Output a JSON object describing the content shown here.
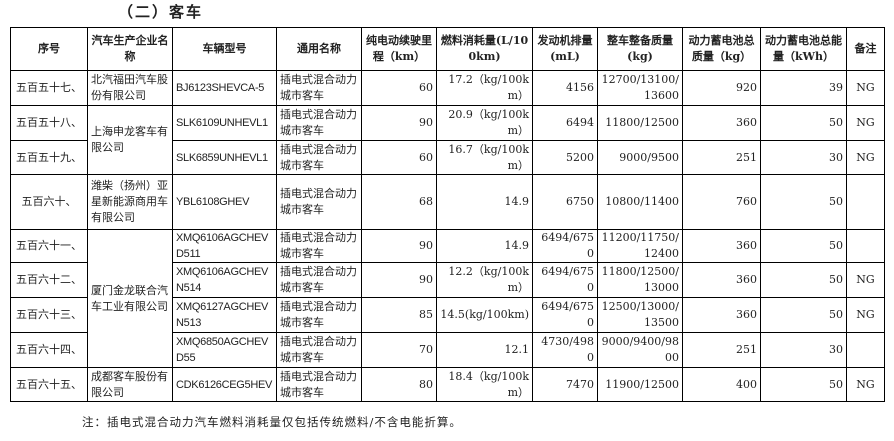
{
  "section_title": "（二）客车",
  "headers": [
    "序号",
    "汽车生产企业名称",
    "车辆型号",
    "通用名称",
    "纯电动续驶里程（km）",
    "燃料消耗量(L/100km)",
    "发动机排量(mL)",
    "整车整备质量(kg)",
    "动力蓄电池总质量（kg）",
    "动力蓄电池总能量（kWh）",
    "备注"
  ],
  "companies": [
    "北汽福田汽车股份有限公司",
    "上海申龙客车有限公司",
    "潍柴（扬州）亚星新能源商用车有限公司",
    "厦门金龙联合汽车工业有限公司",
    "成都客车股份有限公司"
  ],
  "rows": [
    {
      "no": "五百五十七、",
      "model": "BJ6123SHEVCA-5",
      "name": "插电式混合动力城市客车",
      "range": "60",
      "fuel": "17.2（kg/100km）",
      "engine": "4156",
      "mass": "12700/13100/13600",
      "batt_mass": "920",
      "batt_energy": "39",
      "note": "NG"
    },
    {
      "no": "五百五十八、",
      "model": "SLK6109UNHEVL1",
      "name": "插电式混合动力城市客车",
      "range": "90",
      "fuel": "20.9（kg/100km）",
      "engine": "6494",
      "mass": "11800/12500",
      "batt_mass": "360",
      "batt_energy": "50",
      "note": "NG"
    },
    {
      "no": "五百五十九、",
      "model": "SLK6859UNHEVL1",
      "name": "插电式混合动力城市客车",
      "range": "60",
      "fuel": "16.7（kg/100km）",
      "engine": "5200",
      "mass": "9000/9500",
      "batt_mass": "251",
      "batt_energy": "30",
      "note": "NG"
    },
    {
      "no": "五百六十、",
      "model": "YBL6108GHEV",
      "name": "插电式混合动力城市客车",
      "range": "68",
      "fuel": "14.9",
      "engine": "6750",
      "mass": "10800/11400",
      "batt_mass": "760",
      "batt_energy": "50",
      "note": ""
    },
    {
      "no": "五百六十一、",
      "model": "XMQ6106AGCHEVD511",
      "name": "插电式混合动力城市客车",
      "range": "90",
      "fuel": "14.9",
      "engine": "6494/6750",
      "mass": "11200/11750/12400",
      "batt_mass": "360",
      "batt_energy": "50",
      "note": ""
    },
    {
      "no": "五百六十二、",
      "model": "XMQ6106AGCHEVN514",
      "name": "插电式混合动力城市客车",
      "range": "90",
      "fuel": "12.2（kg/100km）",
      "engine": "6494/6750",
      "mass": "11800/12500/13000",
      "batt_mass": "360",
      "batt_energy": "50",
      "note": "NG"
    },
    {
      "no": "五百六十三、",
      "model": "XMQ6127AGCHEVN513",
      "name": "插电式混合动力城市客车",
      "range": "85",
      "fuel": "14.5(kg/100km)",
      "engine": "6494/6750",
      "mass": "12500/13000/13500",
      "batt_mass": "360",
      "batt_energy": "50",
      "note": "NG"
    },
    {
      "no": "五百六十四、",
      "model": "XMQ6850AGCHEVD55",
      "name": "插电式混合动力城市客车",
      "range": "70",
      "fuel": "12.1",
      "engine": "4730/4980",
      "mass": "9000/9400/9800",
      "batt_mass": "251",
      "batt_energy": "30",
      "note": ""
    },
    {
      "no": "五百六十五、",
      "model": "CDK6126CEG5HEV",
      "name": "插电式混合动力城市客车",
      "range": "80",
      "fuel": "18.4（kg/100km）",
      "engine": "7470",
      "mass": "11900/12500",
      "batt_mass": "400",
      "batt_energy": "50",
      "note": "NG"
    }
  ],
  "footnote": "注：插电式混合动力汽车燃料消耗量仅包括传统燃料/不含电能折算。"
}
